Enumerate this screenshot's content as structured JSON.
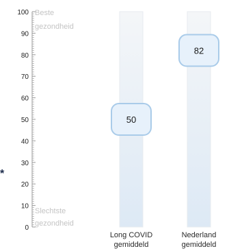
{
  "chart_data": {
    "type": "bar",
    "ylim": [
      0,
      100
    ],
    "y_ticks": [
      0,
      10,
      20,
      30,
      40,
      50,
      60,
      70,
      80,
      90,
      100
    ],
    "scale_top_label": [
      "Beste",
      "gezondheid"
    ],
    "scale_bottom_label": [
      "Slechtste",
      "gezondheid"
    ],
    "asterisk": "*",
    "categories": [
      {
        "label": [
          "Long COVID",
          "gemiddeld"
        ],
        "value": 50
      },
      {
        "label": [
          "Nederland",
          "gemiddeld"
        ],
        "value": 82
      }
    ],
    "colors": {
      "column_top": "#f4f6f8",
      "column_bottom": "#dde9f5",
      "column_border": "#e7ebef",
      "marker_fill": "#e7f1fb",
      "marker_stroke": "#a9cbe9",
      "axis": "#9a9a9a"
    }
  }
}
